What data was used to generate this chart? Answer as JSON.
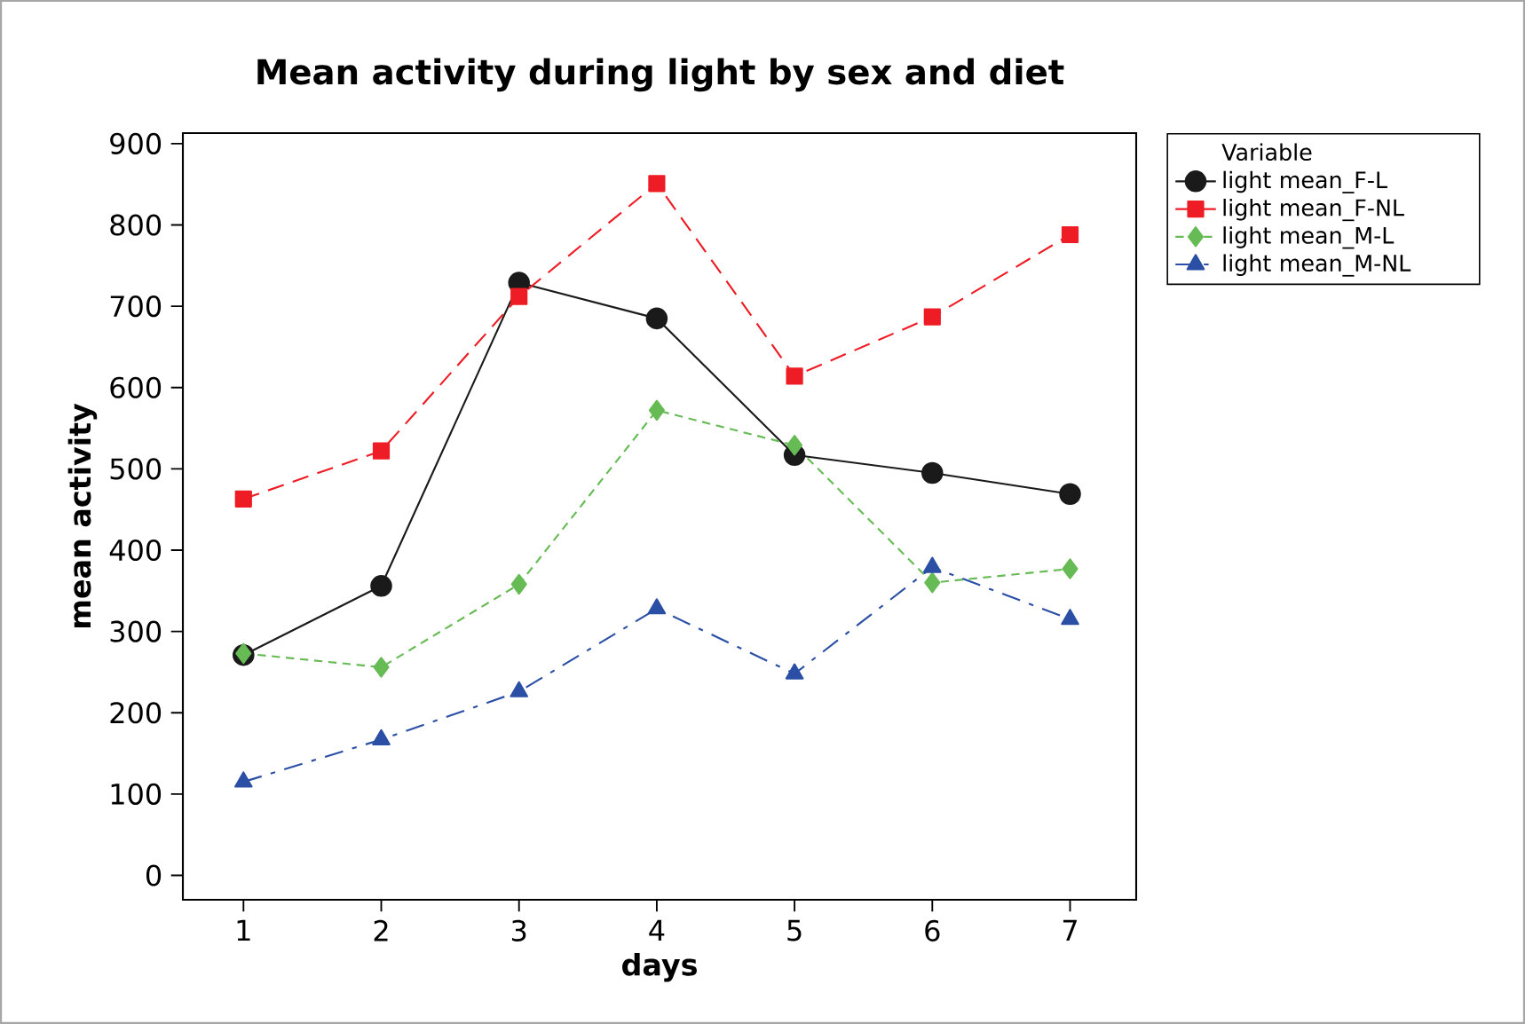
{
  "chart_data": {
    "type": "line",
    "title": "Mean activity during light by sex and diet",
    "xlabel": "days",
    "ylabel": "mean activity",
    "legend_title": "Variable",
    "legend": "top right",
    "x": [
      1,
      2,
      3,
      4,
      5,
      6,
      7
    ],
    "xlim": [
      0.56,
      7.48
    ],
    "xticks": [
      1,
      2,
      3,
      4,
      5,
      6,
      7
    ],
    "ylim": [
      -30,
      913
    ],
    "yticks": [
      0,
      100,
      200,
      300,
      400,
      500,
      600,
      700,
      800,
      900
    ],
    "grid": false,
    "series": [
      {
        "name": "light mean_F-L",
        "color": "#1a1a1a",
        "marker": "circle",
        "line_style": "solid",
        "values": [
          271,
          356,
          729,
          685,
          517,
          495,
          469
        ]
      },
      {
        "name": "light mean_F-NL",
        "color": "#ee1c25",
        "marker": "square",
        "line_style": "dashed",
        "values": [
          463,
          522,
          712,
          851,
          614,
          687,
          788
        ]
      },
      {
        "name": "light mean_M-L",
        "color": "#66bb55",
        "marker": "diamond",
        "line_style": "dotted",
        "values": [
          273,
          256,
          358,
          572,
          529,
          360,
          377
        ]
      },
      {
        "name": "light mean_M-NL",
        "color": "#2a4fa5",
        "marker": "triangle",
        "line_style": "dashdot",
        "values": [
          115,
          167,
          226,
          328,
          248,
          379,
          315
        ]
      }
    ]
  }
}
